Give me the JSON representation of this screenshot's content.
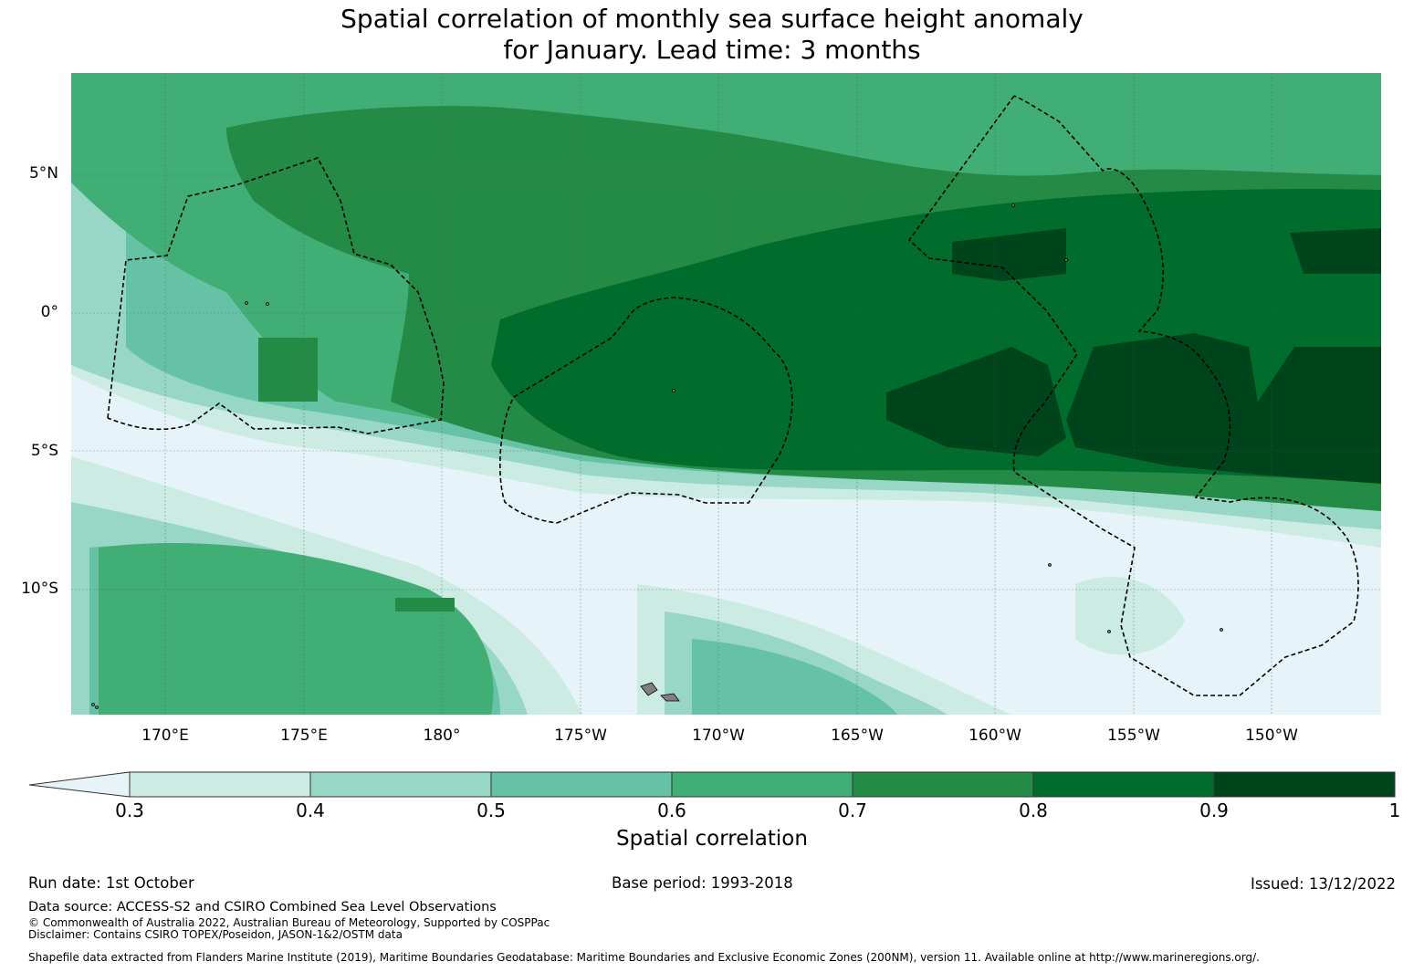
{
  "title": {
    "line1": "Spatial correlation of monthly sea surface height anomaly",
    "line2": "for January. Lead time: 3 months"
  },
  "map": {
    "lat_labels": [
      "5°N",
      "0°",
      "5°S",
      "10°S"
    ],
    "lon_labels": [
      "170°E",
      "175°E",
      "180°",
      "175°W",
      "170°W",
      "165°W",
      "160°W",
      "155°W",
      "150°W"
    ],
    "colors": {
      "below_0_3": "#e6f4f9",
      "r0_3": "#cbebe3",
      "r0_4": "#98d6c6",
      "r0_5": "#66c2a4",
      "r0_6": "#41ae76",
      "r0_7": "#238b45",
      "r0_8": "#006d2c",
      "r0_9": "#00441b",
      "land": "#808080"
    }
  },
  "colorbar": {
    "ticks": [
      "0.3",
      "0.4",
      "0.5",
      "0.6",
      "0.7",
      "0.8",
      "0.9",
      "1"
    ],
    "label": "Spatial correlation"
  },
  "footer": {
    "run_date": "Run date: 1st October",
    "base_period": "Base period: 1993-2018",
    "issued": "Issued: 13/12/2022",
    "data_source": "Data source: ACCESS-S2 and CSIRO Combined Sea Level Observations",
    "copyright": "© Commonwealth of Australia 2022, Australian Bureau of Meteorology, Supported by COSPPac",
    "disclaimer": "Disclaimer: Contains CSIRO TOPEX/Poseidon, JASON-1&2/OSTM data",
    "shapefile": "Shapefile data extracted from Flanders Marine Institute (2019), Maritime Boundaries Geodatabase: Maritime Boundaries and Exclusive Economic Zones (200NM), version 11. Available online at http://www.marineregions.org/."
  }
}
